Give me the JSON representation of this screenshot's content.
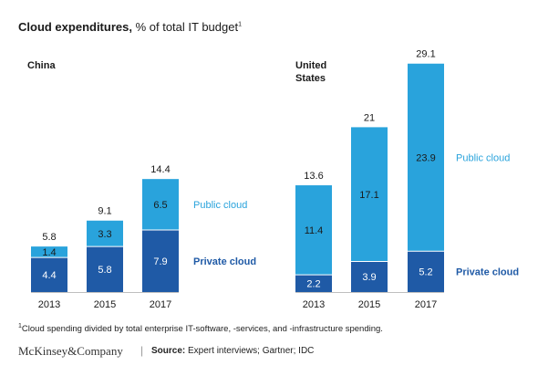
{
  "title": {
    "main": "Cloud expenditures,",
    "sub": " % of total IT budget",
    "marker": "1"
  },
  "footnote": {
    "marker": "1",
    "text": "Cloud spending divided by total enterprise IT-software, -services, and -infrastructure spending."
  },
  "brand": "McKinsey&Company",
  "separator": "|",
  "source": {
    "label": "Source:",
    "text": " Expert interviews; Gartner; IDC"
  },
  "colors": {
    "private": "#1f5aa6",
    "public": "#29a3dc",
    "text": "#1a1a1a"
  },
  "chart_data": [
    {
      "type": "bar",
      "stacked": true,
      "panel_label": [
        "China"
      ],
      "categories": [
        "2013",
        "2015",
        "2017"
      ],
      "series": [
        {
          "name": "Private cloud",
          "values": [
            4.4,
            5.8,
            7.9
          ]
        },
        {
          "name": "Public cloud",
          "values": [
            1.4,
            3.3,
            6.5
          ]
        }
      ],
      "totals": [
        "5.8",
        "9.1",
        "14.4"
      ],
      "value_labels": {
        "private": [
          "4.4",
          "5.8",
          "7.9"
        ],
        "public": [
          "1.4",
          "3.3",
          "6.5"
        ]
      }
    },
    {
      "type": "bar",
      "stacked": true,
      "panel_label": [
        "United",
        "States"
      ],
      "categories": [
        "2013",
        "2015",
        "2017"
      ],
      "series": [
        {
          "name": "Private cloud",
          "values": [
            2.2,
            3.9,
            5.2
          ]
        },
        {
          "name": "Public cloud",
          "values": [
            11.4,
            17.1,
            23.9
          ]
        }
      ],
      "totals": [
        "13.6",
        "21",
        "29.1"
      ],
      "value_labels": {
        "private": [
          "2.2",
          "3.9",
          "5.2"
        ],
        "public": [
          "11.4",
          "17.1",
          "23.9"
        ]
      }
    }
  ]
}
